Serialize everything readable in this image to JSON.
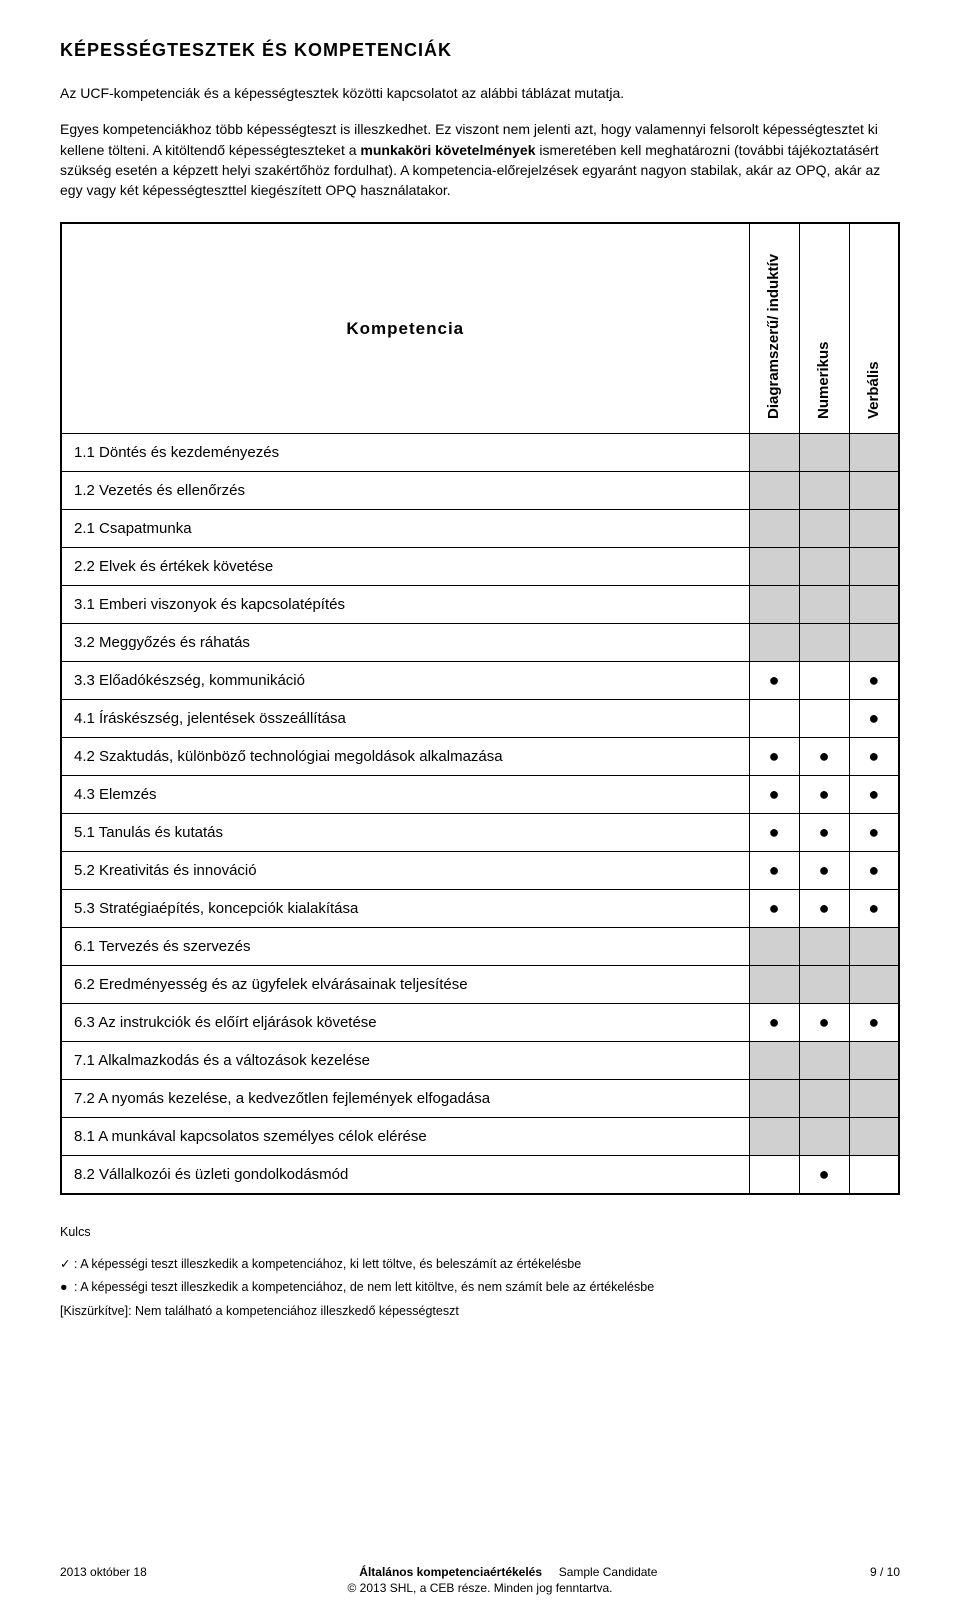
{
  "title": "KÉPESSÉGTESZTEK ÉS KOMPETENCIÁK",
  "para1": "Az UCF-kompetenciák és a képességtesztek közötti kapcsolatot az alábbi táblázat mutatja.",
  "para2_plain1": "Egyes kompetenciákhoz több képességteszt is illeszkedhet. Ez viszont nem jelenti azt, hogy valamennyi felsorolt képességtesztet ki kellene tölteni. A kitöltendő képességteszteket a ",
  "para2_bold": "munkaköri követelmények",
  "para2_plain2": " ismeretében kell meghatározni (további tájékoztatásért szükség esetén a képzett helyi szakértőhöz fordulhat). A kompetencia-előrejelzések egyaránt nagyon stabilak, akár az OPQ, akár az egy vagy két képességteszttel kiegészített OPQ használatakor.",
  "header_competency": "Kompetencia",
  "col_headers": [
    "Diagramszerű/\ninduktív",
    "Numerikus",
    "Verbális"
  ],
  "rows": [
    {
      "label": "1.1 Döntés és kezdeményezés",
      "grey": true,
      "marks": [
        "",
        "",
        ""
      ]
    },
    {
      "label": "1.2 Vezetés és ellenőrzés",
      "grey": true,
      "marks": [
        "",
        "",
        ""
      ]
    },
    {
      "label": "2.1 Csapatmunka",
      "grey": true,
      "marks": [
        "",
        "",
        ""
      ]
    },
    {
      "label": "2.2 Elvek és értékek követése",
      "grey": true,
      "marks": [
        "",
        "",
        ""
      ]
    },
    {
      "label": "3.1 Emberi viszonyok és kapcsolatépítés",
      "grey": true,
      "marks": [
        "",
        "",
        ""
      ]
    },
    {
      "label": "3.2 Meggyőzés és ráhatás",
      "grey": true,
      "marks": [
        "",
        "",
        ""
      ]
    },
    {
      "label": "3.3 Előadókészség, kommunikáció",
      "grey": false,
      "marks": [
        "●",
        "",
        "●"
      ]
    },
    {
      "label": "4.1 Íráskészség, jelentések összeállítása",
      "grey": false,
      "marks": [
        "",
        "",
        "●"
      ]
    },
    {
      "label": "4.2 Szaktudás, különböző technológiai megoldások alkalmazása",
      "grey": false,
      "marks": [
        "●",
        "●",
        "●"
      ]
    },
    {
      "label": "4.3 Elemzés",
      "grey": false,
      "marks": [
        "●",
        "●",
        "●"
      ]
    },
    {
      "label": "5.1 Tanulás és kutatás",
      "grey": false,
      "marks": [
        "●",
        "●",
        "●"
      ]
    },
    {
      "label": "5.2 Kreativitás és innováció",
      "grey": false,
      "marks": [
        "●",
        "●",
        "●"
      ]
    },
    {
      "label": "5.3 Stratégiaépítés, koncepciók kialakítása",
      "grey": false,
      "marks": [
        "●",
        "●",
        "●"
      ]
    },
    {
      "label": "6.1 Tervezés és szervezés",
      "grey": true,
      "marks": [
        "",
        "",
        ""
      ]
    },
    {
      "label": "6.2 Eredményesség és az ügyfelek elvárásainak teljesítése",
      "grey": true,
      "marks": [
        "",
        "",
        ""
      ]
    },
    {
      "label": "6.3 Az instrukciók és előírt eljárások követése",
      "grey": false,
      "marks": [
        "●",
        "●",
        "●"
      ]
    },
    {
      "label": "7.1 Alkalmazkodás és a változások kezelése",
      "grey": true,
      "marks": [
        "",
        "",
        ""
      ]
    },
    {
      "label": "7.2 A nyomás kezelése, a kedvezőtlen fejlemények elfogadása",
      "grey": true,
      "marks": [
        "",
        "",
        ""
      ]
    },
    {
      "label": "8.1 A munkával kapcsolatos személyes célok elérése",
      "grey": true,
      "marks": [
        "",
        "",
        ""
      ]
    },
    {
      "label": "8.2 Vállalkozói és üzleti gondolkodásmód",
      "grey": false,
      "marks": [
        "",
        "●",
        ""
      ]
    }
  ],
  "legend_title": "Kulcs",
  "legend_items": [
    {
      "sym": "✓",
      "text": ": A képességi teszt illeszkedik a kompetenciához, ki lett töltve, és beleszámít az értékelésbe"
    },
    {
      "sym": "●",
      "text": ": A képességi teszt illeszkedik a kompetenciához, de nem lett kitöltve, és nem számít bele az értékelésbe"
    },
    {
      "sym": "[Kiszürkítve]",
      "text": ": Nem található a kompetenciához illeszkedő képességteszt"
    }
  ],
  "footer": {
    "date": "2013 október 18",
    "center_line1_a": "Általános kompetenciaértékelés",
    "center_line1_b": "Sample Candidate",
    "center_line2": "© 2013 SHL, a CEB része. Minden jog fenntartva.",
    "page": "9 / 10"
  }
}
